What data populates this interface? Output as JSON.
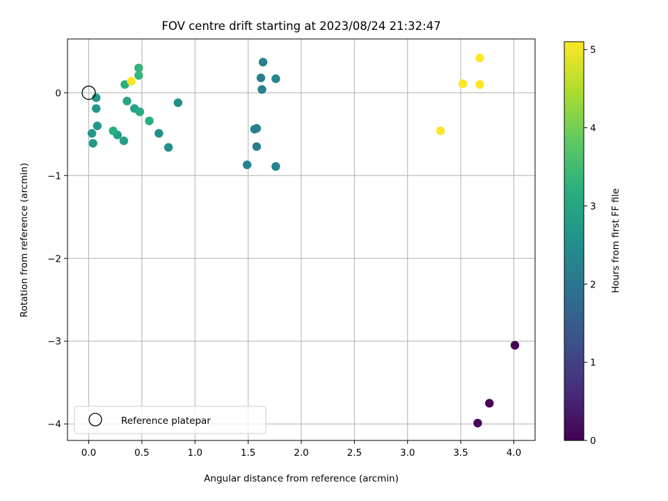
{
  "chart_data": {
    "type": "scatter",
    "title": "FOV centre drift starting at 2023/08/24 21:32:47",
    "xlabel": "Angular distance from reference (arcmin)",
    "ylabel": "Rotation from reference (arcmin)",
    "xlim": [
      -0.2,
      4.2
    ],
    "ylim": [
      -4.2,
      0.65
    ],
    "x_ticks": [
      0.0,
      0.5,
      1.0,
      1.5,
      2.0,
      2.5,
      3.0,
      3.5,
      4.0
    ],
    "x_tick_labels": [
      "0.0",
      "0.5",
      "1.0",
      "1.5",
      "2.0",
      "2.5",
      "3.0",
      "3.5",
      "4.0"
    ],
    "y_ticks": [
      0,
      -1,
      -2,
      -3,
      -4
    ],
    "y_tick_labels": [
      "0",
      "−1",
      "−2",
      "−3",
      "−4"
    ],
    "grid": true,
    "legend": {
      "placement": "lower-left",
      "entries": [
        "Reference platepar"
      ]
    },
    "reference_point": {
      "x": 0.0,
      "y": 0.0
    },
    "colorbar": {
      "label": "Hours from first FF file",
      "colormap": "viridis",
      "range": [
        0,
        5.1
      ],
      "ticks": [
        0,
        1,
        2,
        3,
        4,
        5
      ],
      "tick_labels": [
        "0",
        "1",
        "2",
        "3",
        "4",
        "5"
      ]
    },
    "points": [
      {
        "x": 4.01,
        "y": -3.05,
        "hours": 0.0
      },
      {
        "x": 3.77,
        "y": -3.75,
        "hours": 0.05
      },
      {
        "x": 3.66,
        "y": -3.99,
        "hours": 0.1
      },
      {
        "x": 1.64,
        "y": 0.37,
        "hours": 2.2
      },
      {
        "x": 1.62,
        "y": 0.18,
        "hours": 2.2
      },
      {
        "x": 1.76,
        "y": 0.17,
        "hours": 2.3
      },
      {
        "x": 1.63,
        "y": 0.04,
        "hours": 2.2
      },
      {
        "x": 1.56,
        "y": -0.44,
        "hours": 2.2
      },
      {
        "x": 1.58,
        "y": -0.43,
        "hours": 2.25
      },
      {
        "x": 1.58,
        "y": -0.65,
        "hours": 2.2
      },
      {
        "x": 1.49,
        "y": -0.87,
        "hours": 2.25
      },
      {
        "x": 1.76,
        "y": -0.89,
        "hours": 2.25
      },
      {
        "x": 0.84,
        "y": -0.12,
        "hours": 2.5
      },
      {
        "x": 0.66,
        "y": -0.49,
        "hours": 2.5
      },
      {
        "x": 0.75,
        "y": -0.66,
        "hours": 2.5
      },
      {
        "x": 0.07,
        "y": -0.06,
        "hours": 2.7
      },
      {
        "x": 0.07,
        "y": -0.19,
        "hours": 2.7
      },
      {
        "x": 0.08,
        "y": -0.4,
        "hours": 2.7
      },
      {
        "x": 0.03,
        "y": -0.49,
        "hours": 2.7
      },
      {
        "x": 0.04,
        "y": -0.61,
        "hours": 2.7
      },
      {
        "x": 0.27,
        "y": -0.51,
        "hours": 2.85
      },
      {
        "x": 0.33,
        "y": -0.58,
        "hours": 2.85
      },
      {
        "x": 0.43,
        "y": -0.19,
        "hours": 2.9
      },
      {
        "x": 0.36,
        "y": -0.1,
        "hours": 3.0
      },
      {
        "x": 0.48,
        "y": -0.23,
        "hours": 3.1
      },
      {
        "x": 0.57,
        "y": -0.34,
        "hours": 3.15
      },
      {
        "x": 0.23,
        "y": -0.46,
        "hours": 3.2
      },
      {
        "x": 0.34,
        "y": 0.1,
        "hours": 3.2
      },
      {
        "x": 0.47,
        "y": 0.3,
        "hours": 3.3
      },
      {
        "x": 0.47,
        "y": 0.21,
        "hours": 3.35
      },
      {
        "x": 0.4,
        "y": 0.14,
        "hours": 5.1
      },
      {
        "x": 3.68,
        "y": 0.42,
        "hours": 5.1
      },
      {
        "x": 3.52,
        "y": 0.11,
        "hours": 5.1
      },
      {
        "x": 3.68,
        "y": 0.1,
        "hours": 5.1
      },
      {
        "x": 3.31,
        "y": -0.46,
        "hours": 5.1
      }
    ]
  }
}
